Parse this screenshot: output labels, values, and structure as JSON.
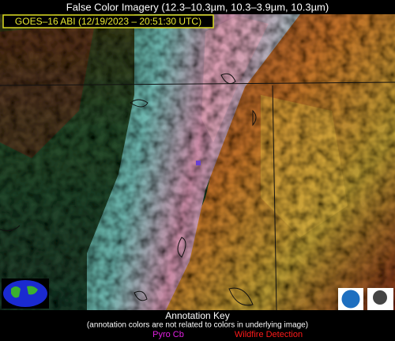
{
  "header": {
    "title": "False Color Imagery (12.3–10.3µm, 10.3–3.9µm, 10.3µm)",
    "subtitle": "GOES–16 ABI (12/19/2023 – 20:51:30 UTC)"
  },
  "key": {
    "title": "Annotation Key",
    "note": "(annotation colors are not related to colors in underlying image)",
    "items": [
      "Pyro Cb",
      "Wildfire Detection"
    ]
  }
}
